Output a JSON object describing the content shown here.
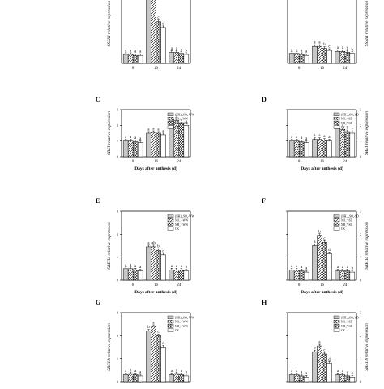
{
  "figure": {
    "panel_labels": [
      "C",
      "D",
      "E",
      "F",
      "G",
      "H"
    ],
    "xlabel": "Days after anthesis (d)",
    "categories": [
      "8",
      "16",
      "24"
    ]
  },
  "chart_data": [
    {
      "id": "A",
      "type": "bar",
      "panel_label": "",
      "ylabel": "SSSIII relative expression",
      "xlabel": "",
      "categories": [
        "8",
        "16",
        "24"
      ],
      "ylim": [
        0,
        8
      ],
      "yticks": [],
      "y_axis_side": "left",
      "legend": [],
      "legend_fragment": "-WW",
      "series": [
        {
          "values": [
            0.9,
            7.0,
            1.1
          ],
          "letters": [
            "a",
            "a",
            "a"
          ]
        },
        {
          "values": [
            0.9,
            6.6,
            1.1
          ],
          "letters": [
            "a",
            "b",
            "a"
          ]
        },
        {
          "values": [
            0.8,
            4.2,
            1.0
          ],
          "letters": [
            "a",
            "c",
            "a"
          ]
        },
        {
          "values": [
            0.8,
            3.6,
            0.9
          ],
          "letters": [
            "a",
            "d",
            "b"
          ]
        }
      ]
    },
    {
      "id": "B",
      "type": "bar",
      "panel_label": "",
      "ylabel": "SSSIII relative expression",
      "xlabel": "",
      "categories": [
        "8",
        "16",
        "24"
      ],
      "ylim": [
        0,
        8
      ],
      "yticks": [],
      "y_axis_side": "right",
      "legend": [],
      "legend_fragment": "-SD",
      "series": [
        {
          "values": [
            1.0,
            1.7,
            1.2
          ],
          "letters": [
            "a",
            "a",
            "a"
          ]
        },
        {
          "values": [
            1.0,
            1.7,
            1.2
          ],
          "letters": [
            "a",
            "a",
            "a"
          ]
        },
        {
          "values": [
            0.9,
            1.5,
            1.1
          ],
          "letters": [
            "a",
            "b",
            "b"
          ]
        },
        {
          "values": [
            0.8,
            1.3,
            1.0
          ],
          "letters": [
            "a",
            "c",
            "b"
          ]
        }
      ]
    },
    {
      "id": "C",
      "type": "bar",
      "panel_label": "C",
      "ylabel": "SBEI relative expression",
      "xlabel": "Days after anthesis (d)",
      "categories": [
        "8",
        "16",
        "24"
      ],
      "ylim": [
        0,
        3
      ],
      "yticks": [
        "0",
        "1",
        "2",
        "3"
      ],
      "y_axis_side": "left",
      "legend": [
        "(NH₄)₂SO₄-WW",
        "NO₃⁻-WW",
        "NH₄⁺-WW",
        "CK"
      ],
      "series": [
        {
          "values": [
            1.0,
            1.5,
            2.4
          ],
          "letters": [
            "a",
            "a",
            "a"
          ]
        },
        {
          "values": [
            1.0,
            1.55,
            2.3
          ],
          "letters": [
            "a",
            "a",
            "a"
          ]
        },
        {
          "values": [
            0.95,
            1.5,
            2.1
          ],
          "letters": [
            "a",
            "a",
            "b"
          ]
        },
        {
          "values": [
            0.9,
            1.4,
            2.0
          ],
          "letters": [
            "a",
            "a",
            "b"
          ]
        }
      ]
    },
    {
      "id": "D",
      "type": "bar",
      "panel_label": "D",
      "ylabel": "SBEI relative expression",
      "xlabel": "Days after anthesis (d)",
      "categories": [
        "8",
        "16",
        "24"
      ],
      "ylim": [
        0,
        3
      ],
      "yticks": [
        "0",
        "1",
        "2",
        "3"
      ],
      "y_axis_side": "right",
      "legend": [
        "(NH₄)₂SO₄-SD",
        "NO₃⁻-SD",
        "NH₄⁺-SD",
        "CK"
      ],
      "series": [
        {
          "values": [
            1.0,
            1.1,
            1.8
          ],
          "letters": [
            "a",
            "a",
            "a"
          ]
        },
        {
          "values": [
            1.0,
            1.1,
            1.75
          ],
          "letters": [
            "a",
            "a",
            "a"
          ]
        },
        {
          "values": [
            0.95,
            1.05,
            1.6
          ],
          "letters": [
            "a",
            "a",
            "b"
          ]
        },
        {
          "values": [
            0.9,
            1.0,
            1.5
          ],
          "letters": [
            "a",
            "a",
            "c"
          ]
        }
      ]
    },
    {
      "id": "E",
      "type": "bar",
      "panel_label": "E",
      "ylabel": "SBEIIa relative expression",
      "xlabel": "Days after anthesis (d)",
      "categories": [
        "8",
        "16",
        "24"
      ],
      "ylim": [
        0,
        3
      ],
      "yticks": [
        "0",
        "1",
        "2",
        "3"
      ],
      "y_axis_side": "left",
      "legend": [
        "(NH₄)₂SO₄-WW",
        "NO₃⁻-WW",
        "NH₄⁺-WW",
        "CK"
      ],
      "series": [
        {
          "values": [
            0.5,
            1.45,
            0.45
          ],
          "letters": [
            "a",
            "a",
            "a"
          ]
        },
        {
          "values": [
            0.5,
            1.45,
            0.45
          ],
          "letters": [
            "a",
            "ab",
            "a"
          ]
        },
        {
          "values": [
            0.45,
            1.3,
            0.45
          ],
          "letters": [
            "a",
            "b",
            "a"
          ]
        },
        {
          "values": [
            0.4,
            1.1,
            0.4
          ],
          "letters": [
            "a",
            "c",
            "b"
          ]
        }
      ]
    },
    {
      "id": "F",
      "type": "bar",
      "panel_label": "F",
      "ylabel": "SBEIIa relative expression",
      "xlabel": "Days after anthesis (d)",
      "categories": [
        "8",
        "16",
        "24"
      ],
      "ylim": [
        0,
        3
      ],
      "yticks": [
        "0",
        "1",
        "2",
        "3"
      ],
      "y_axis_side": "right",
      "legend": [
        "(NH₄)₂SO₄-SD",
        "NO₃⁻-SD",
        "NH₄⁺-SD",
        "CK"
      ],
      "series": [
        {
          "values": [
            0.45,
            1.5,
            0.4
          ],
          "letters": [
            "a",
            "a",
            "a"
          ]
        },
        {
          "values": [
            0.45,
            1.95,
            0.4
          ],
          "letters": [
            "a",
            "b",
            "a"
          ]
        },
        {
          "values": [
            0.4,
            1.65,
            0.4
          ],
          "letters": [
            "a",
            "c",
            "a"
          ]
        },
        {
          "values": [
            0.35,
            1.15,
            0.35
          ],
          "letters": [
            "a",
            "d",
            "b"
          ]
        }
      ]
    },
    {
      "id": "G",
      "type": "bar",
      "panel_label": "G",
      "ylabel": "SBEIIb relative expression",
      "xlabel": "",
      "categories": [
        "8",
        "16",
        "24"
      ],
      "ylim": [
        0,
        3
      ],
      "yticks": [
        "0",
        "1",
        "2",
        "3"
      ],
      "y_axis_side": "left",
      "legend": [
        "(NH₄)₂SO₄-WW",
        "NO₃⁻-WW",
        "NH₄⁺-WW",
        "CK"
      ],
      "series": [
        {
          "values": [
            0.3,
            2.2,
            0.3
          ],
          "letters": [
            "a",
            "b",
            "a"
          ]
        },
        {
          "values": [
            0.35,
            2.4,
            0.35
          ],
          "letters": [
            "a",
            "a",
            "a"
          ]
        },
        {
          "values": [
            0.3,
            2.0,
            0.3
          ],
          "letters": [
            "a",
            "c",
            "a"
          ]
        },
        {
          "values": [
            0.25,
            1.5,
            0.25
          ],
          "letters": [
            "a",
            "d",
            "b"
          ]
        }
      ]
    },
    {
      "id": "H",
      "type": "bar",
      "panel_label": "H",
      "ylabel": "SBEIIb relative expression",
      "xlabel": "",
      "categories": [
        "8",
        "16",
        "24"
      ],
      "ylim": [
        0,
        3
      ],
      "yticks": [
        "0",
        "1",
        "2",
        "3"
      ],
      "y_axis_side": "right",
      "legend": [
        "(NH₄)₂SO₄-SD",
        "NO₃⁻-SD",
        "NH₄⁺-SD",
        "CK"
      ],
      "series": [
        {
          "values": [
            0.3,
            1.3,
            0.3
          ],
          "letters": [
            "a",
            "b",
            "a"
          ]
        },
        {
          "values": [
            0.3,
            1.55,
            0.3
          ],
          "letters": [
            "a",
            "a",
            "a"
          ]
        },
        {
          "values": [
            0.25,
            1.2,
            0.25
          ],
          "letters": [
            "a",
            "c",
            "a"
          ]
        },
        {
          "values": [
            0.2,
            0.8,
            0.2
          ],
          "letters": [
            "a",
            "d",
            "b"
          ]
        }
      ]
    }
  ]
}
